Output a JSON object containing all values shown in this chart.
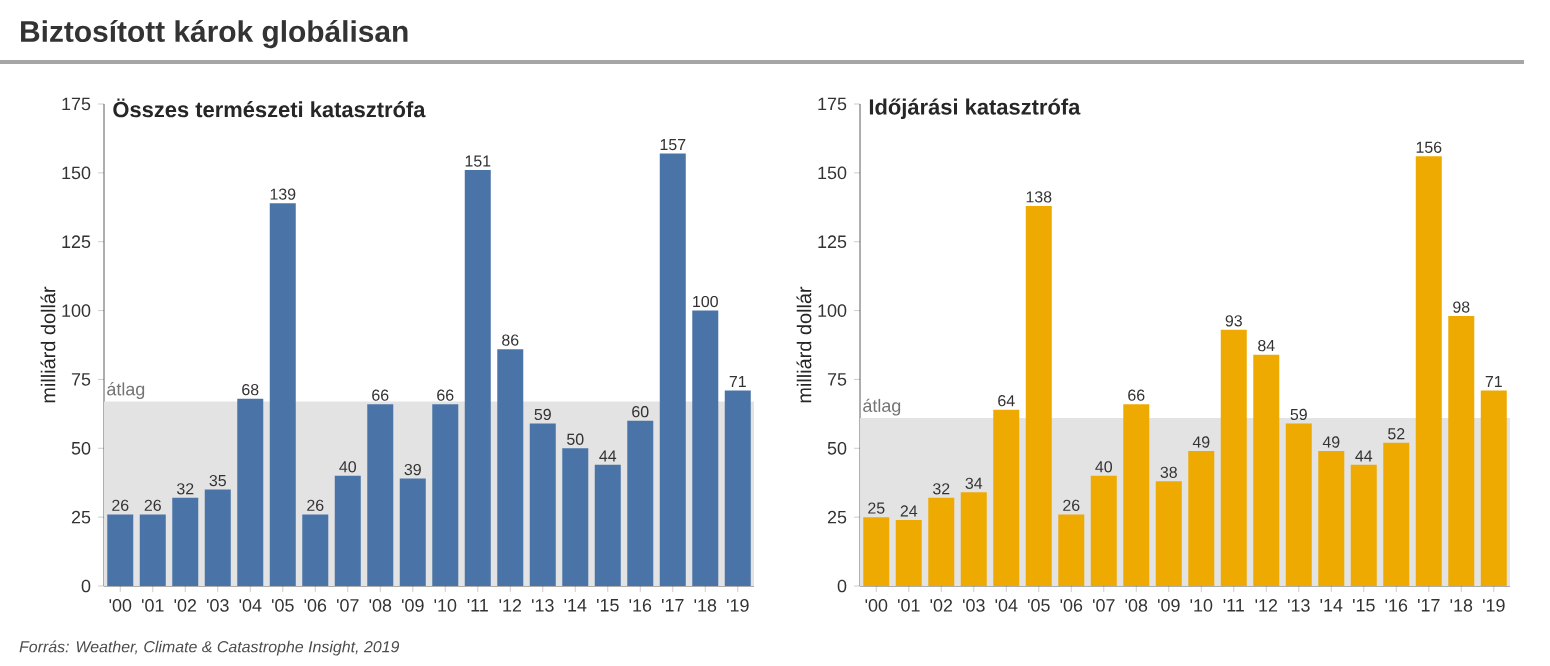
{
  "chart_data": [
    {
      "type": "bar",
      "title": "Biztosított károk globálisan",
      "subtitle": "Összes természeti katasztrófa",
      "ylabel": "milliárd dollár",
      "categories": [
        "'00",
        "'01",
        "'02",
        "'03",
        "'04",
        "'05",
        "'06",
        "'07",
        "'08",
        "'09",
        "'10",
        "'11",
        "'12",
        "'13",
        "'14",
        "'15",
        "'16",
        "'17",
        "'18",
        "'19"
      ],
      "values": [
        26,
        26,
        32,
        35,
        68,
        139,
        26,
        40,
        66,
        39,
        66,
        151,
        86,
        59,
        50,
        44,
        60,
        157,
        100,
        71
      ],
      "color": "#4a74a8",
      "ylim": [
        0,
        175
      ],
      "yticks": [
        0,
        25,
        50,
        75,
        100,
        125,
        150,
        175
      ],
      "data_labels": true,
      "bands": [
        {
          "axis": "y",
          "from": 0,
          "to": 67,
          "label": "átlag",
          "color": "#e3e3e3"
        }
      ],
      "annotations": [
        "Forrás: Weather, Climate & Catastrophe Insight, 2019"
      ]
    },
    {
      "type": "bar",
      "subtitle": "Időjárási katasztrófa",
      "ylabel": "milliárd dollár",
      "categories": [
        "'00",
        "'01",
        "'02",
        "'03",
        "'04",
        "'05",
        "'06",
        "'07",
        "'08",
        "'09",
        "'10",
        "'11",
        "'12",
        "'13",
        "'14",
        "'15",
        "'16",
        "'17",
        "'18",
        "'19"
      ],
      "values": [
        25,
        24,
        32,
        34,
        64,
        138,
        26,
        40,
        66,
        38,
        49,
        93,
        84,
        59,
        49,
        44,
        52,
        156,
        98,
        71
      ],
      "color": "#eeaa00",
      "ylim": [
        0,
        175
      ],
      "yticks": [
        0,
        25,
        50,
        75,
        100,
        125,
        150,
        175
      ],
      "data_labels": true,
      "bands": [
        {
          "axis": "y",
          "from": 0,
          "to": 61,
          "label": "átlag",
          "color": "#e3e3e3"
        }
      ]
    }
  ]
}
